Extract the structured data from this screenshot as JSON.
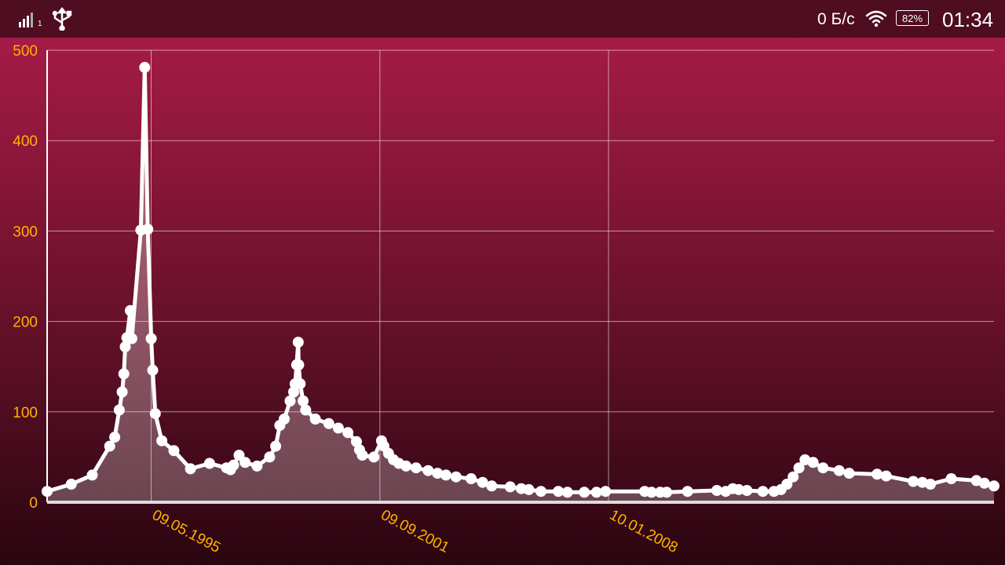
{
  "status_bar": {
    "signal_icon": "signal-bars-icon",
    "sim_slot": "1",
    "usb_icon": "usb-icon",
    "net_speed": "0 Б/с",
    "wifi_icon": "wifi-icon",
    "battery": "82%",
    "time": "01:34"
  },
  "colors": {
    "background_top": "#ab1d4a",
    "background_bottom": "#2a0510",
    "line": "#ffffff",
    "tick_label": "#ffb300",
    "fill": "#ffffff"
  },
  "chart_data": {
    "type": "area",
    "title": "",
    "xlabel": "",
    "ylabel": "",
    "ylim": [
      0,
      500
    ],
    "yticks": [
      0,
      100,
      200,
      300,
      400,
      500
    ],
    "xlim": [
      "1992-06-20",
      "2018-09-15"
    ],
    "xticks": [
      "09.05.1995",
      "09.09.2001",
      "10.01.2008"
    ],
    "grid": true,
    "series": [
      {
        "x": [
          "1992-06-20",
          "1993-02-20",
          "1993-09-20",
          "1994-03-15",
          "1994-05-05",
          "1994-06-20",
          "1994-07-20",
          "1994-08-05",
          "1994-08-20",
          "1994-09-05",
          "1994-10-10",
          "1994-10-25",
          "1995-01-25",
          "1995-03-05",
          "1995-04-05",
          "1995-05-10",
          "1995-05-25",
          "1995-06-20",
          "1995-08-25",
          "1995-12-25",
          "1996-06-10",
          "1996-12-20",
          "1997-06-10",
          "1997-07-20",
          "1997-08-20",
          "1997-10-15",
          "1997-12-15",
          "1998-04-15",
          "1998-08-20",
          "1998-10-20",
          "1998-12-01",
          "1999-01-15",
          "1999-03-15",
          "1999-04-20",
          "1999-05-05",
          "1999-05-20",
          "1999-06-05",
          "1999-06-10",
          "1999-06-25",
          "1999-07-25",
          "1999-08-20",
          "1999-11-25",
          "2000-04-10",
          "2000-07-15",
          "2000-10-20",
          "2001-01-15",
          "2001-02-15",
          "2001-03-15",
          "2001-07-10",
          "2001-09-25",
          "2001-10-20",
          "2001-12-05",
          "2002-01-25",
          "2002-03-20",
          "2002-06-01",
          "2002-09-10",
          "2003-01-10",
          "2003-04-15",
          "2003-07-10",
          "2003-10-20",
          "2004-03-20",
          "2004-07-15",
          "2004-10-15",
          "2005-04-20",
          "2005-08-10",
          "2005-10-25",
          "2006-02-25",
          "2006-08-20",
          "2006-11-20",
          "2007-05-10",
          "2007-09-10",
          "2007-12-10",
          "2009-01-10",
          "2009-03-20",
          "2009-06-15",
          "2009-08-20",
          "2010-03-20",
          "2011-01-10",
          "2011-04-10",
          "2011-06-20",
          "2011-08-20",
          "2011-11-10",
          "2012-04-20",
          "2012-08-10",
          "2012-10-20",
          "2012-12-20",
          "2013-02-20",
          "2013-04-20",
          "2013-06-20",
          "2013-09-10",
          "2013-12-20",
          "2014-06-01",
          "2014-09-10",
          "2015-06-20",
          "2015-09-20",
          "2016-06-20",
          "2016-09-20",
          "2016-12-10",
          "2017-07-10",
          "2018-03-20",
          "2018-06-10",
          "2018-09-15"
        ],
        "y": [
          12,
          20,
          30,
          62,
          72,
          102,
          122,
          142,
          172,
          182,
          212,
          181,
          301,
          481,
          302,
          181,
          146,
          98,
          68,
          57,
          37,
          43,
          38,
          36,
          41,
          52,
          44,
          40,
          50,
          62,
          85,
          92,
          112,
          122,
          131,
          152,
          177,
          152,
          131,
          112,
          102,
          92,
          87,
          82,
          77,
          67,
          58,
          52,
          50,
          68,
          62,
          54,
          47,
          43,
          40,
          38,
          35,
          32,
          30,
          28,
          26,
          22,
          18,
          17,
          15,
          14,
          12,
          12,
          11,
          11,
          11,
          12,
          12,
          11,
          11,
          11,
          12,
          13,
          12,
          15,
          14,
          13,
          12,
          12,
          14,
          20,
          28,
          38,
          47,
          44,
          38,
          35,
          32,
          31,
          29,
          23,
          22,
          20,
          26,
          24,
          21,
          18
        ]
      }
    ]
  }
}
